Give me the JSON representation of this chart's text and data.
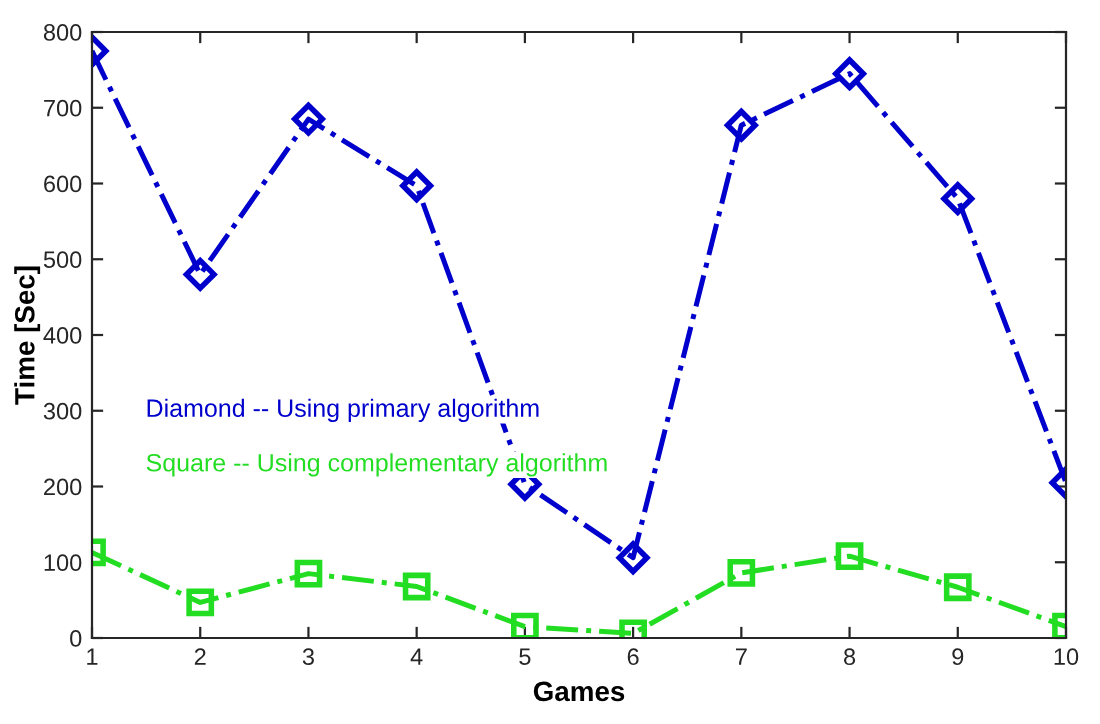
{
  "chart_data": {
    "type": "line",
    "xlabel": "Games",
    "ylabel": "Time [Sec]",
    "x": [
      1,
      2,
      3,
      4,
      5,
      6,
      7,
      8,
      9,
      10
    ],
    "series": [
      {
        "name": "Diamond -- Using primary algorithm",
        "color": "#0000cc",
        "marker": "diamond",
        "values": [
          775,
          480,
          685,
          597,
          203,
          106,
          677,
          745,
          580,
          205
        ]
      },
      {
        "name": "Square -- Using complementary algorithm",
        "color": "#22dd22",
        "marker": "square",
        "values": [
          113,
          47,
          85,
          68,
          15,
          6,
          86,
          108,
          67,
          15
        ]
      }
    ],
    "line_style": "dashdot",
    "xlim": [
      1,
      10
    ],
    "xticks": [
      1,
      2,
      3,
      4,
      5,
      6,
      7,
      8,
      9,
      10
    ],
    "ylim": [
      0,
      800
    ],
    "yticks": [
      0,
      100,
      200,
      300,
      400,
      500,
      600,
      700,
      800
    ],
    "grid": false,
    "legend": false
  }
}
